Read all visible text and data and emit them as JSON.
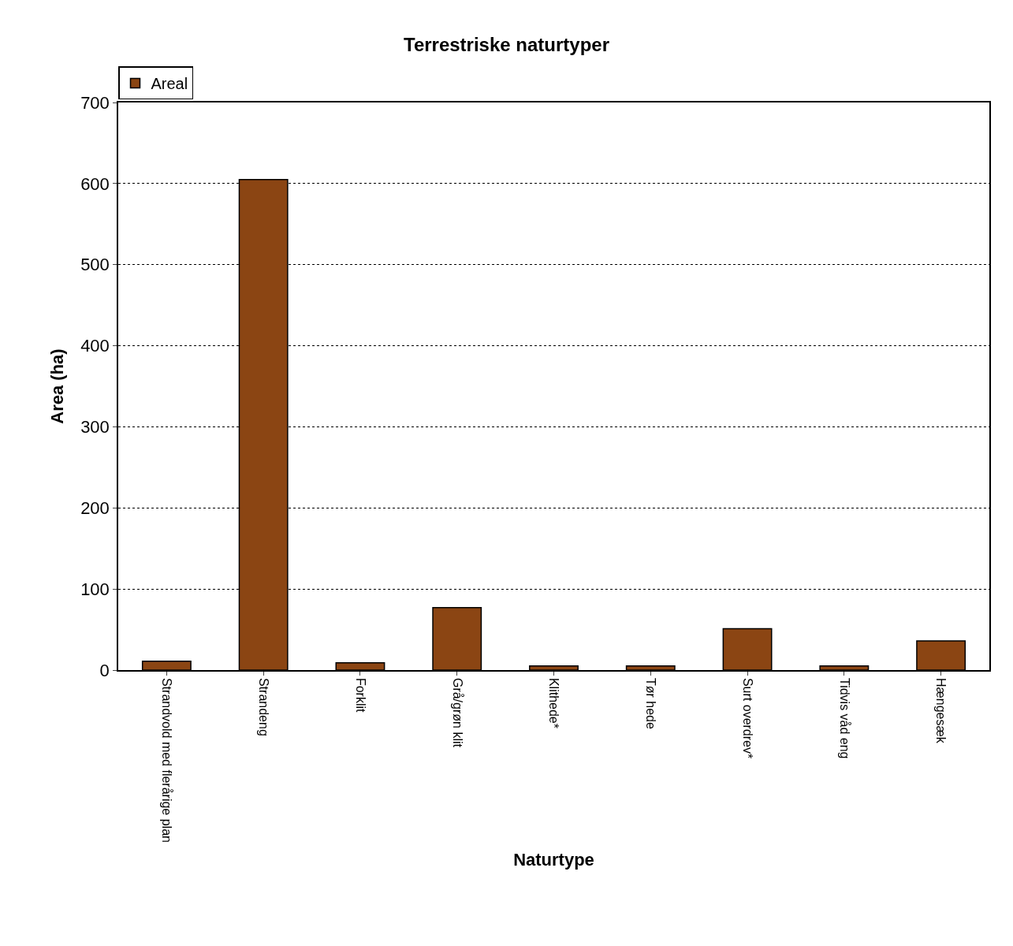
{
  "chart_data": {
    "type": "bar",
    "title": "Terrestriske naturtyper",
    "xlabel": "Naturtype",
    "ylabel": "Area (ha)",
    "categories": [
      "Strandvold med flerårige plan",
      "Strandeng",
      "Forklit",
      "Grå/grøn klit",
      "Klithede*",
      "Tør hede",
      "Surt overdrev*",
      "Tidvis våd eng",
      "Hængesæk"
    ],
    "series": [
      {
        "name": "Areal",
        "color": "#8b4513",
        "values": [
          11,
          605,
          9,
          77,
          5,
          5,
          51,
          5,
          36
        ]
      }
    ],
    "ylim": [
      0,
      700
    ],
    "yticks": [
      0,
      100,
      200,
      300,
      400,
      500,
      600,
      700
    ],
    "grid": "y",
    "legend": "top left"
  }
}
